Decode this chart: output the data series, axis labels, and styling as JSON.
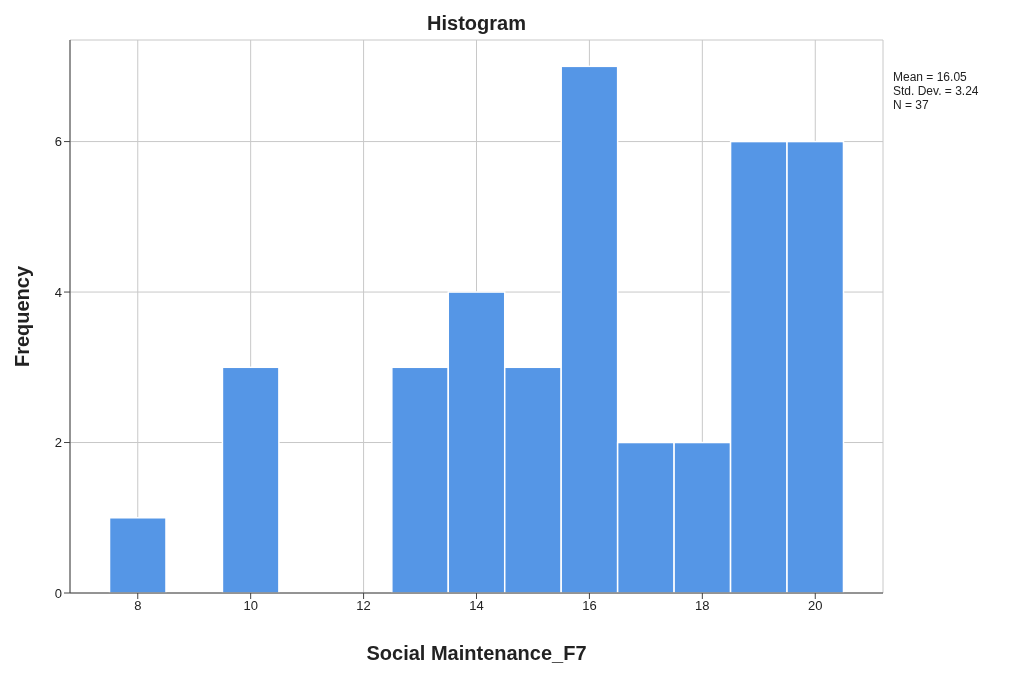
{
  "chart_data": {
    "type": "histogram",
    "title": "Histogram",
    "xlabel": "Social Maintenance_F7",
    "ylabel": "Frequency",
    "bins": [
      7.5,
      8.5,
      9.5,
      10.5,
      11.5,
      12.5,
      13.5,
      14.5,
      15.5,
      16.5,
      17.5,
      18.5,
      19.5,
      20.5
    ],
    "values": [
      1,
      0,
      3,
      0,
      0,
      3,
      4,
      3,
      7,
      2,
      2,
      6,
      6
    ],
    "color": "#5596e6",
    "xlim": [
      6.8,
      21.2
    ],
    "xticks": [
      8,
      10,
      12,
      14,
      16,
      18,
      20
    ],
    "ylim": [
      0,
      7.35
    ],
    "yticks": [
      0,
      2,
      4,
      6
    ],
    "grid": true,
    "annotations": [
      "Mean = 16.05",
      "Std. Dev. = 3.24",
      "N = 37"
    ]
  }
}
